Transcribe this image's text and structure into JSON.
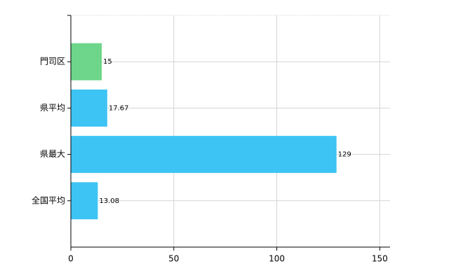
{
  "chart_data": {
    "type": "hbar",
    "categories": [
      "門司区",
      "県平均",
      "県最大",
      "全国平均"
    ],
    "values": [
      15,
      17.67,
      129,
      13.08
    ],
    "colors": [
      "#6dd68a",
      "#3ec3f5",
      "#3ec3f5",
      "#3ec3f5"
    ],
    "xlim": [
      0,
      155
    ],
    "xticks": [
      0,
      50,
      100,
      150
    ],
    "grid": true
  }
}
